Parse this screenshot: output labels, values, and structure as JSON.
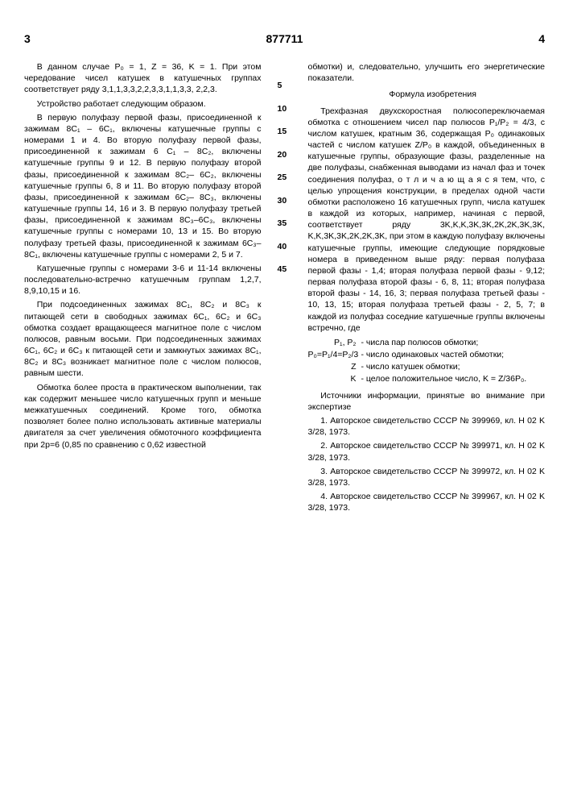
{
  "header": {
    "left_page": "3",
    "doc_number": "877711",
    "right_page": "4"
  },
  "left_column": {
    "p1": "В данном случае P₀ = 1, Z = 36, K = 1. При этом чередование чисел катушек в катушечных группах соответствует ряду 3,1,1,3,3,2,2,3,3,1,1,3,3, 2,2,3.",
    "p2": "Устройство работает следующим образом.",
    "p3": "В первую полуфазу первой фазы, присоединенной к зажимам 8С₁ – 6С₁, включены катушечные группы с номерами 1 и 4. Во вторую полуфазу первой фазы, присоединенной к зажимам 6 С₁ – 8С₂, включены катушечные группы 9 и 12. В первую полуфазу второй фазы, присоединенной к зажимам 8С₂– 6С₂, включены катушечные группы 6, 8 и 11. Во вторую полуфазу второй фазы, присоединенной к зажимам 6С₂– 8С₃, включены катушечные группы 14, 16 и 3. В первую полуфазу третьей фазы, присоединенной к зажимам 8С₃–6С₃, включены катушечные группы с номерами 10, 13 и 15. Во вторую полуфазу третьей фазы, присоединенной к зажимам 6С₃–8С₁, включены катушечные группы с номерами 2, 5 и 7.",
    "p4": "Катушечные группы с номерами 3-6 и 11-14 включены последовательно-встречно катушечным группам 1,2,7, 8,9,10,15 и 16.",
    "p5": "При подсоединенных зажимах 8С₁, 8С₂ и 8С₃ к питающей сети в свободных зажимах 6С₁, 6С₂ и 6С₃ обмотка создает вращающееся магнитное поле с числом полюсов, равным восьми. При подсоединенных зажимах 6С₁, 6С₂ и 6С₃ к питающей сети и замкнутых зажимах 8С₁, 8С₂ и 8С₃ возникает магнитное поле с числом полюсов, равным шести.",
    "p6": "Обмотка более проста в практическом выполнении, так как содержит меньшее число катушечных групп и меньше межкатушечных соединений. Кроме того, обмотка позволяет более полно использовать активные материалы двигателя за счет увеличения обмоточного коэффициента при 2p=6 (0,85 по сравнению с 0,62 известной"
  },
  "line_numbers": [
    "5",
    "10",
    "15",
    "20",
    "25",
    "30",
    "35",
    "40",
    "45"
  ],
  "right_column": {
    "p1": "обмотки) и, следовательно, улучшить его энергетические показатели.",
    "formula_title": "Формула изобретения",
    "p2": "Трехфазная двухскоростная полюсопереключаемая обмотка с отношением чисел пар полюсов P₁/P₂ = 4/3, с числом катушек, кратным 36, содержащая P₀ одинаковых частей с числом катушек Z/P₀ в каждой, объединенных в катушечные группы, образующие фазы, разделенные на две полуфазы, снабженная выводами из начал фаз и точек соединения полуфаз, о т л и ч а ю щ а я с я  тем, что, с целью упрощения конструкции, в пределах одной части обмотки расположено 16 катушечных групп, числа катушек в каждой из которых, например, начиная с первой, соответствует ряду 3K,K,K,3K,3K,2K,2K,3K,3K, K,K,3K,3K,2K,2K,3K, при этом в каждую полуфазу включены катушечные группы, имеющие следующие порядковые номера в приведенном выше ряду: первая полуфаза первой фазы - 1,4; вторая полуфаза первой фазы - 9,12; первая полуфаза второй фазы - 6, 8, 11; вторая полуфаза второй фазы - 14, 16, 3; первая полуфаза третьей фазы - 10, 13, 15; вторая полуфаза третьей фазы - 2, 5, 7; в каждой из полуфаз соседние катушечные группы включены встречно, где",
    "defs": [
      {
        "term": "P₁, P₂",
        "desc": "- числа пар полюсов обмотки;"
      },
      {
        "term": "P₀=P₁/4=P₂/3",
        "desc": "- число одинаковых частей обмотки;"
      },
      {
        "term": "Z",
        "desc": "- число катушек обмотки;"
      },
      {
        "term": "K",
        "desc": "- целое положительное число, K = Z/36P₀."
      }
    ],
    "sources_title": "Источники информации, принятые во внимание при экспертизе",
    "sources": [
      "1. Авторское свидетельство СССР № 399969, кл. H 02 K 3/28, 1973.",
      "2. Авторское свидетельство СССР № 399971, кл. H 02 K 3/28, 1973.",
      "3. Авторское свидетельство СССР № 399972, кл. H 02 K 3/28, 1973.",
      "4. Авторское свидетельство СССР № 399967, кл. H 02 K 3/28, 1973."
    ]
  }
}
